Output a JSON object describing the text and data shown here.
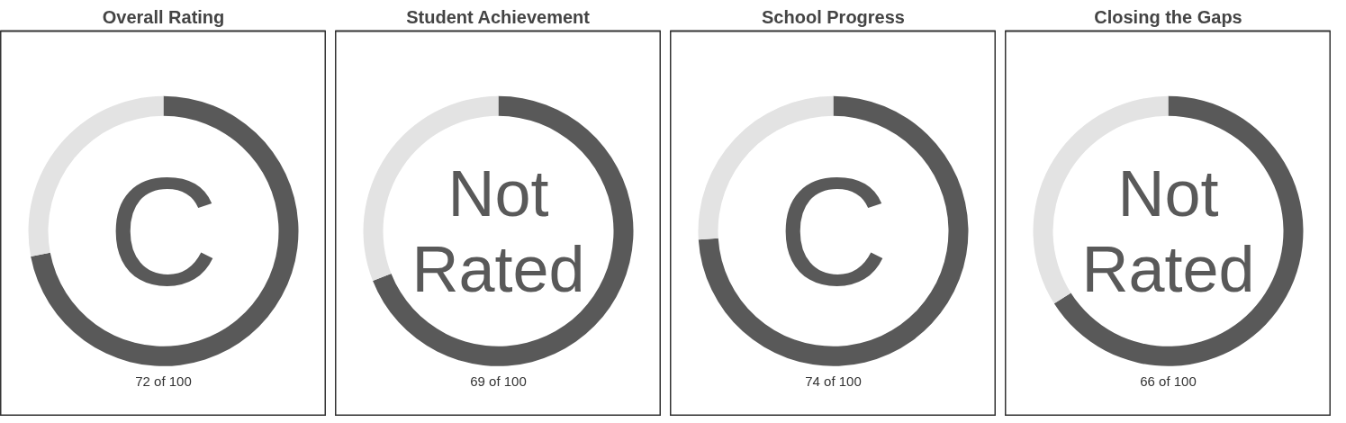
{
  "chart_data": [
    {
      "type": "donut",
      "title": "Overall Rating",
      "categories": [
        null,
        null
      ],
      "values": [
        72,
        28
      ],
      "colors": [
        "#595959",
        "#e3e3e3"
      ],
      "annotations": [
        "C",
        "72 of 100"
      ]
    },
    {
      "type": "donut",
      "title": "Student Achievement",
      "categories": [
        null,
        null
      ],
      "values": [
        69,
        31
      ],
      "colors": [
        "#595959",
        "#e3e3e3"
      ],
      "annotations": [
        "Not Rated",
        "69 of 100"
      ]
    },
    {
      "type": "donut",
      "title": "School Progress",
      "categories": [
        null,
        null
      ],
      "values": [
        74,
        26
      ],
      "colors": [
        "#595959",
        "#e3e3e3"
      ],
      "annotations": [
        "C",
        "74 of 100"
      ]
    },
    {
      "type": "donut",
      "title": "Closing the Gaps",
      "categories": [
        null,
        null
      ],
      "values": [
        66,
        34
      ],
      "colors": [
        "#595959",
        "#e3e3e3"
      ],
      "annotations": [
        "Not Rated",
        "66 of 100"
      ]
    }
  ]
}
